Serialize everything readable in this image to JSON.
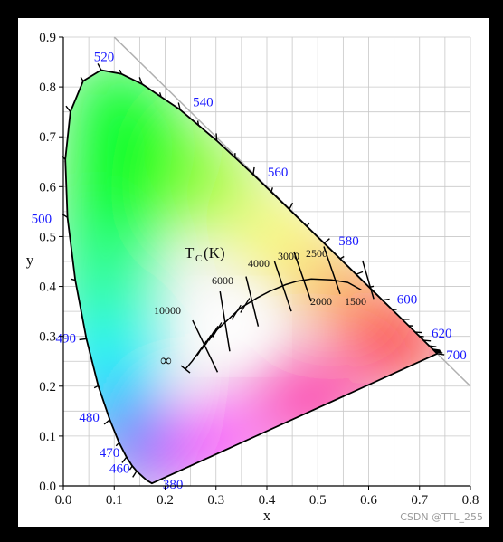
{
  "diagram": {
    "x_axis": {
      "title": "x",
      "range": [
        0,
        0.8
      ],
      "ticks": [
        {
          "value": 0.0,
          "label": "0.0"
        },
        {
          "value": 0.1,
          "label": "0.1"
        },
        {
          "value": 0.2,
          "label": "0.2"
        },
        {
          "value": 0.3,
          "label": "0.3"
        },
        {
          "value": 0.4,
          "label": "0.4"
        },
        {
          "value": 0.5,
          "label": "0.5"
        },
        {
          "value": 0.6,
          "label": "0.6"
        },
        {
          "value": 0.7,
          "label": "0.7"
        },
        {
          "value": 0.8,
          "label": "0.8"
        }
      ]
    },
    "y_axis": {
      "title": "y",
      "range": [
        0,
        0.9
      ],
      "ticks": [
        {
          "value": 0.0,
          "label": "0.0"
        },
        {
          "value": 0.1,
          "label": "0.1"
        },
        {
          "value": 0.2,
          "label": "0.2"
        },
        {
          "value": 0.3,
          "label": "0.3"
        },
        {
          "value": 0.4,
          "label": "0.4"
        },
        {
          "value": 0.5,
          "label": "0.5"
        },
        {
          "value": 0.6,
          "label": "0.6"
        },
        {
          "value": 0.7,
          "label": "0.7"
        },
        {
          "value": 0.8,
          "label": "0.8"
        },
        {
          "value": 0.9,
          "label": "0.9"
        }
      ]
    },
    "grid": true,
    "spectral_locus": [
      {
        "nm": 380,
        "x": 0.1741,
        "y": 0.005
      },
      {
        "nm": 440,
        "x": 0.1644,
        "y": 0.0109
      },
      {
        "nm": 450,
        "x": 0.1566,
        "y": 0.0177
      },
      {
        "nm": 460,
        "x": 0.144,
        "y": 0.0297
      },
      {
        "nm": 465,
        "x": 0.1355,
        "y": 0.0399
      },
      {
        "nm": 470,
        "x": 0.1241,
        "y": 0.0578
      },
      {
        "nm": 475,
        "x": 0.1096,
        "y": 0.0868
      },
      {
        "nm": 480,
        "x": 0.0913,
        "y": 0.1327
      },
      {
        "nm": 485,
        "x": 0.0687,
        "y": 0.2007
      },
      {
        "nm": 490,
        "x": 0.0454,
        "y": 0.295
      },
      {
        "nm": 495,
        "x": 0.0235,
        "y": 0.4127
      },
      {
        "nm": 500,
        "x": 0.0082,
        "y": 0.5384
      },
      {
        "nm": 505,
        "x": 0.0039,
        "y": 0.6548
      },
      {
        "nm": 510,
        "x": 0.0139,
        "y": 0.7502
      },
      {
        "nm": 515,
        "x": 0.0389,
        "y": 0.812
      },
      {
        "nm": 520,
        "x": 0.0743,
        "y": 0.8338
      },
      {
        "nm": 525,
        "x": 0.1142,
        "y": 0.8262
      },
      {
        "nm": 530,
        "x": 0.1547,
        "y": 0.8059
      },
      {
        "nm": 540,
        "x": 0.2296,
        "y": 0.7543
      },
      {
        "nm": 550,
        "x": 0.3016,
        "y": 0.6923
      },
      {
        "nm": 560,
        "x": 0.3731,
        "y": 0.6245
      },
      {
        "nm": 570,
        "x": 0.4441,
        "y": 0.5547
      },
      {
        "nm": 580,
        "x": 0.5125,
        "y": 0.4866
      },
      {
        "nm": 590,
        "x": 0.5752,
        "y": 0.4242
      },
      {
        "nm": 600,
        "x": 0.627,
        "y": 0.3725
      },
      {
        "nm": 610,
        "x": 0.6658,
        "y": 0.334
      },
      {
        "nm": 620,
        "x": 0.6915,
        "y": 0.3083
      },
      {
        "nm": 630,
        "x": 0.7079,
        "y": 0.292
      },
      {
        "nm": 640,
        "x": 0.719,
        "y": 0.2809
      },
      {
        "nm": 650,
        "x": 0.726,
        "y": 0.274
      },
      {
        "nm": 700,
        "x": 0.7347,
        "y": 0.2653
      }
    ],
    "wavelength_ticks_nm": [
      460,
      465,
      470,
      475,
      480,
      485,
      490,
      495,
      500,
      505,
      510,
      515,
      520,
      525,
      530,
      535,
      540,
      545,
      550,
      555,
      560,
      565,
      570,
      575,
      580,
      585,
      590,
      595,
      600,
      605,
      610,
      615,
      620,
      625,
      630,
      640,
      650,
      660,
      670,
      680,
      700
    ],
    "wavelength_labels": [
      {
        "text": "380",
        "nm": 380
      },
      {
        "text": "460",
        "nm": 460
      },
      {
        "text": "470",
        "nm": 470
      },
      {
        "text": "480",
        "nm": 480
      },
      {
        "text": "490",
        "nm": 490
      },
      {
        "text": "500",
        "nm": 500
      },
      {
        "text": "520",
        "nm": 520
      },
      {
        "text": "540",
        "nm": 540
      },
      {
        "text": "560",
        "nm": 560
      },
      {
        "text": "580",
        "nm": 580
      },
      {
        "text": "600",
        "nm": 600
      },
      {
        "text": "620",
        "nm": 620
      },
      {
        "text": "700",
        "nm": 700
      }
    ],
    "planckian_locus": [
      {
        "x": 0.2399,
        "y": 0.2341
      },
      {
        "x": 0.2531,
        "y": 0.2502
      },
      {
        "x": 0.2709,
        "y": 0.2754
      },
      {
        "x": 0.2807,
        "y": 0.2884
      },
      {
        "x": 0.2952,
        "y": 0.3068
      },
      {
        "x": 0.3135,
        "y": 0.3237
      },
      {
        "x": 0.3221,
        "y": 0.3318
      },
      {
        "x": 0.3473,
        "y": 0.3561
      },
      {
        "x": 0.3805,
        "y": 0.3768
      },
      {
        "x": 0.4044,
        "y": 0.3897
      },
      {
        "x": 0.4368,
        "y": 0.4038
      },
      {
        "x": 0.4596,
        "y": 0.4106
      },
      {
        "x": 0.4872,
        "y": 0.4151
      },
      {
        "x": 0.5267,
        "y": 0.4133
      },
      {
        "x": 0.559,
        "y": 0.408
      },
      {
        "x": 0.5856,
        "y": 0.3931
      }
    ],
    "isotherms": [
      {
        "cct": 10000,
        "x1": 0.254,
        "y1": 0.332,
        "x2": 0.303,
        "y2": 0.228
      },
      {
        "cct": 6000,
        "x1": 0.308,
        "y1": 0.39,
        "x2": 0.327,
        "y2": 0.27
      },
      {
        "cct": 4000,
        "x1": 0.359,
        "y1": 0.42,
        "x2": 0.383,
        "y2": 0.32
      },
      {
        "cct": 3000,
        "x1": 0.415,
        "y1": 0.45,
        "x2": 0.448,
        "y2": 0.35
      },
      {
        "cct": 2500,
        "x1": 0.453,
        "y1": 0.47,
        "x2": 0.487,
        "y2": 0.37
      },
      {
        "cct": 2000,
        "x1": 0.512,
        "y1": 0.48,
        "x2": 0.544,
        "y2": 0.385
      },
      {
        "cct": 1500,
        "x1": 0.588,
        "y1": 0.452,
        "x2": 0.61,
        "y2": 0.375
      }
    ],
    "minor_isotherm_ticks": [
      {
        "x": 0.272,
        "y": 0.276
      },
      {
        "x": 0.281,
        "y": 0.288
      },
      {
        "x": 0.288,
        "y": 0.297
      },
      {
        "x": 0.295,
        "y": 0.306
      },
      {
        "x": 0.302,
        "y": 0.313
      },
      {
        "x": 0.34,
        "y": 0.348
      },
      {
        "x": 0.357,
        "y": 0.362
      }
    ],
    "infinity_endpoint": {
      "x": 0.24,
      "y": 0.234
    },
    "labels": {
      "tc_label": "T",
      "tc_subscript": "C",
      "tc_unit": "(K)",
      "infinity": "∞",
      "cct_10000": "10000",
      "cct_6000": "6000",
      "cct_4000": "4000",
      "cct_3000": "3000",
      "cct_2500": "2500",
      "cct_2000": "2000",
      "cct_1500": "1500"
    },
    "colors": {
      "wavelength_label": "#1a1aff",
      "grid": "#c8c8c8",
      "line_of_purples_extension": "#b0b0b0"
    }
  },
  "watermark": "CSDN @TTL_255"
}
